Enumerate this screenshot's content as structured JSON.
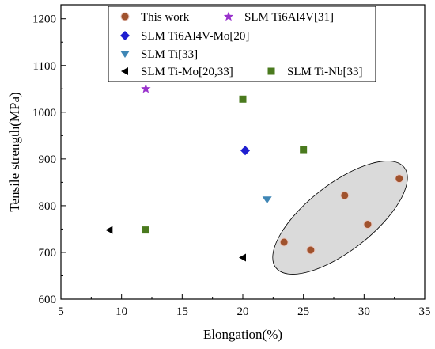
{
  "chart_data": {
    "type": "scatter",
    "xlabel": "Elongation(%)",
    "ylabel": "Tensile strength(MPa)",
    "xlim": [
      5,
      35
    ],
    "ylim": [
      600,
      1230
    ],
    "xticks": [
      "5",
      "10",
      "15",
      "20",
      "25",
      "30",
      "35"
    ],
    "yticks": [
      "600",
      "700",
      "800",
      "900",
      "1000",
      "1100",
      "1200"
    ],
    "grid": false,
    "legend_position": "top",
    "series": [
      {
        "name": "This work",
        "marker": "circle",
        "color": "#a0522d",
        "points": [
          [
            23.4,
            722
          ],
          [
            25.6,
            705
          ],
          [
            28.4,
            822
          ],
          [
            30.3,
            760
          ],
          [
            32.9,
            858
          ]
        ]
      },
      {
        "name": "SLM Ti6Al4V[31]",
        "marker": "star",
        "color": "#9932cc",
        "points": [
          [
            12,
            1050
          ]
        ]
      },
      {
        "name": "SLM Ti6Al4V-Mo[20]",
        "marker": "diamond",
        "color": "#1f1fd0",
        "points": [
          [
            20.2,
            918
          ]
        ]
      },
      {
        "name": "SLM Ti[33]",
        "marker": "triangle-down",
        "color": "#3f86b5",
        "points": [
          [
            22,
            813
          ]
        ]
      },
      {
        "name": "SLM Ti-Mo[20,33]",
        "marker": "triangle-left",
        "color": "#000000",
        "points": [
          [
            9,
            748
          ],
          [
            20,
            689
          ]
        ]
      },
      {
        "name": "SLM Ti-Nb[33]",
        "marker": "square",
        "color": "#4a7a1e",
        "points": [
          [
            12,
            748
          ],
          [
            20,
            1028
          ],
          [
            25,
            920
          ]
        ]
      }
    ],
    "annotations": [
      {
        "type": "ellipse",
        "note": "highlight region around This work points",
        "fill": "#d3d3d3"
      }
    ]
  }
}
